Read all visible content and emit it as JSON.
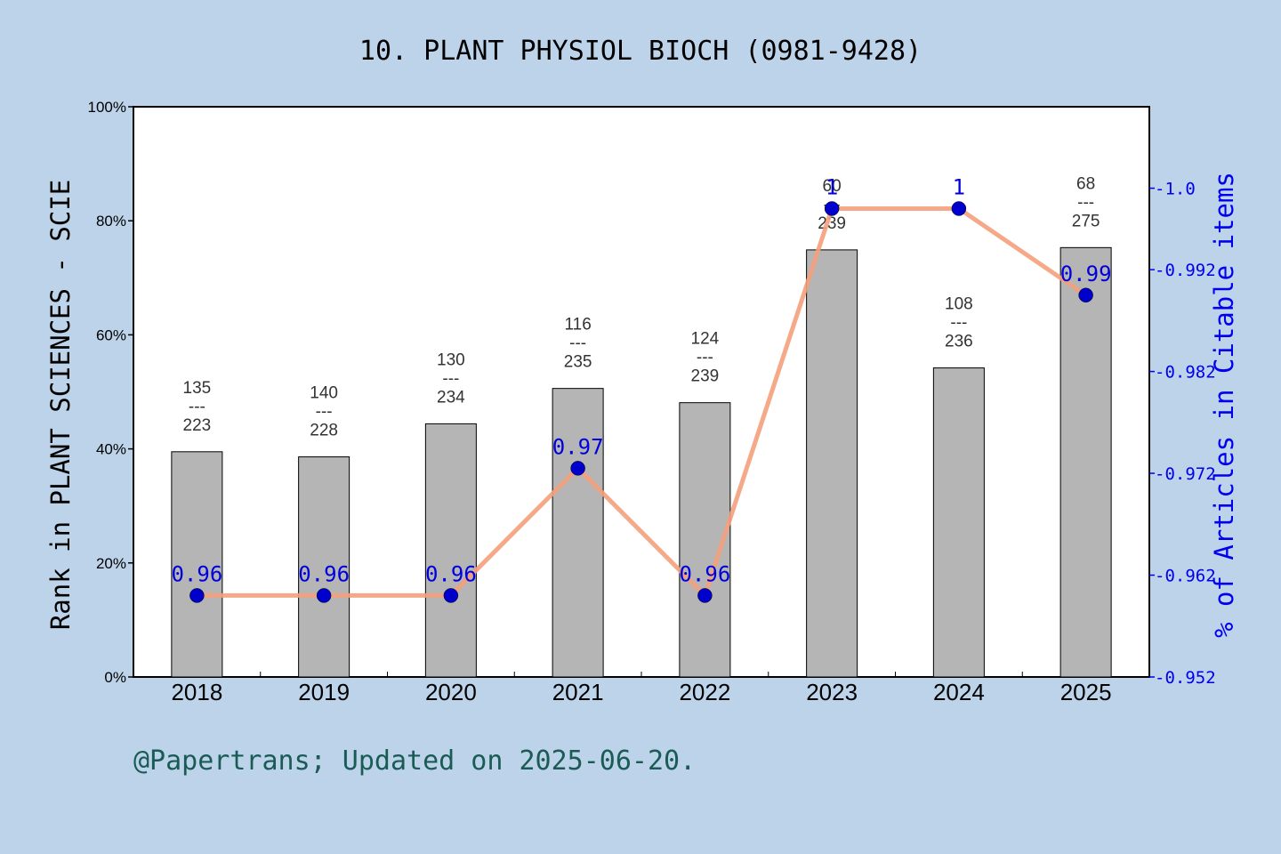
{
  "chart_data": {
    "type": "bar",
    "title": "10. PLANT PHYSIOL BIOCH (0981-9428)",
    "ylabel": "Rank in PLANT SCIENCES - SCIE",
    "y2label": "% of Articles in Citable items",
    "categories": [
      "2018",
      "2019",
      "2020",
      "2021",
      "2022",
      "2023",
      "2024",
      "2025"
    ],
    "ylim": [
      0,
      100
    ],
    "yticks": [
      "0%",
      "20%",
      "40%",
      "60%",
      "80%",
      "100%"
    ],
    "y2lim": [
      0.952,
      1.008
    ],
    "y2ticks": [
      "0.952",
      "0.962",
      "0.972",
      "0.982",
      "0.992",
      "1.0"
    ],
    "grid": false,
    "series": [
      {
        "kind": "bar",
        "values": [
          39.5,
          38.6,
          44.4,
          50.6,
          48.1,
          74.9,
          54.2,
          75.3
        ],
        "color": "#b5b5b5",
        "labels": [
          {
            "top": "135",
            "sep": "---",
            "bottom": "223"
          },
          {
            "top": "140",
            "sep": "---",
            "bottom": "228"
          },
          {
            "top": "130",
            "sep": "---",
            "bottom": "234"
          },
          {
            "top": "116",
            "sep": "---",
            "bottom": "235"
          },
          {
            "top": "124",
            "sep": "---",
            "bottom": "239"
          },
          {
            "top": "60",
            "sep": "---",
            "bottom": "239"
          },
          {
            "top": "108",
            "sep": "---",
            "bottom": "236"
          },
          {
            "top": "68",
            "sep": "---",
            "bottom": "275"
          }
        ]
      },
      {
        "kind": "line",
        "axis": "right",
        "values": [
          0.96,
          0.96,
          0.96,
          0.9725,
          0.96,
          0.998,
          0.998,
          0.9895
        ],
        "point_labels": [
          "0.96",
          "0.96",
          "0.96",
          "0.97",
          "0.96",
          "1",
          "1",
          "0.99"
        ],
        "line_color": "#f4a07c",
        "marker_color": "#0000cc"
      }
    ],
    "colors": {
      "background": "#bcd3ea",
      "plot_bg": "#ffffff",
      "right_axis": "#0000ee",
      "footer": "#1a5c55"
    }
  },
  "footer": "@Papertrans; Updated on 2025-06-20."
}
